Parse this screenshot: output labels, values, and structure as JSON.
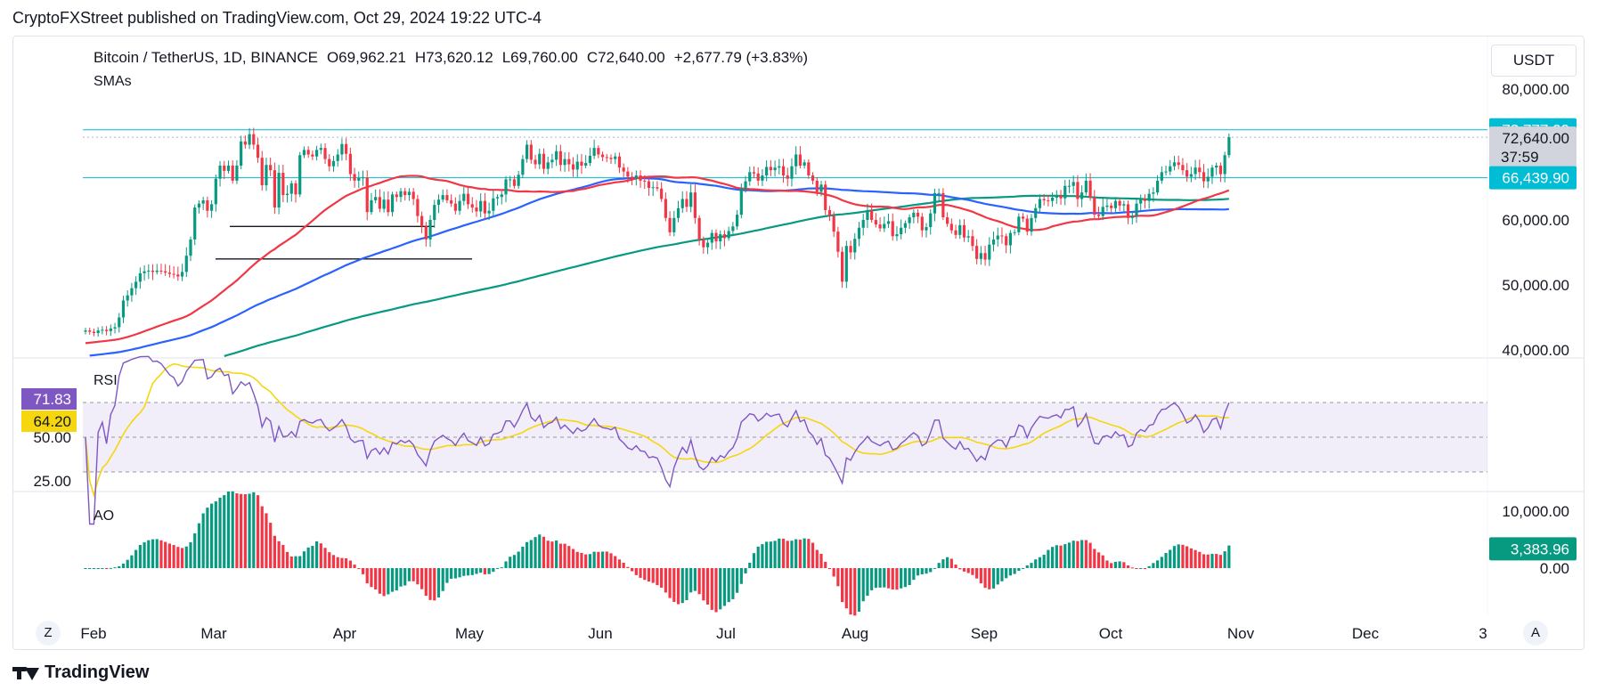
{
  "header": {
    "published": "CryptoFXStreet published on TradingView.com, Oct 29, 2024 19:22 UTC-4"
  },
  "footer": {
    "brand": "TradingView"
  },
  "currency": "USDT",
  "scale_buttons": {
    "left": "Z",
    "right": "A"
  },
  "legend": {
    "symbol": "Bitcoin / TetherUS, 1D, BINANCE",
    "open": "O69,962.21",
    "high": "H73,620.12",
    "low": "L69,760.00",
    "close": "C72,640.00",
    "change": "+2,677.79 (+3.83%)",
    "indicator": "SMAs"
  },
  "colors": {
    "bull": "#089981",
    "bear": "#f23645",
    "sma_red": "#f23645",
    "sma_blue": "#2962ff",
    "sma_green": "#089981",
    "rsi_line": "#7e57c2",
    "rsi_ma": "#f5d60f",
    "level_line": "#00bcd4"
  },
  "chart_data": [
    {
      "type": "candlestick",
      "title": "Bitcoin / TetherUS, 1D, BINANCE",
      "x_ticks": [
        "Feb",
        "Mar",
        "Apr",
        "May",
        "Jun",
        "Jul",
        "Aug",
        "Sep",
        "Oct",
        "Nov",
        "Dec",
        "3"
      ],
      "y_ticks": [
        "80,000.00",
        "60,000.00",
        "50,000.00",
        "40,000.00"
      ],
      "ylim": [
        40000,
        80000
      ],
      "price_labels": [
        {
          "value": 73777,
          "text": "73,777.00",
          "color": "#00bcd4"
        },
        {
          "value": 72640,
          "text": "72,640.00",
          "countdown": "37:59",
          "color": "#d1d4dc"
        },
        {
          "value": 66439.9,
          "text": "66,439.90",
          "color": "#00bcd4"
        }
      ],
      "horizontal_levels": [
        73777,
        66439.9
      ],
      "support_lines": [
        {
          "from": "Mar",
          "to": "Apr",
          "value": 59000
        },
        {
          "from": "Mar",
          "to": "May",
          "value": 54000
        }
      ],
      "closes": [
        43000,
        42800,
        42600,
        43000,
        43100,
        42900,
        43300,
        43500,
        45000,
        47600,
        48400,
        49500,
        50500,
        51800,
        52100,
        52200,
        52000,
        52200,
        52100,
        51900,
        51700,
        51600,
        51300,
        52000,
        54500,
        57000,
        61900,
        62500,
        63000,
        61400,
        62400,
        66300,
        68300,
        67500,
        68300,
        66000,
        68300,
        72000,
        71500,
        73100,
        71500,
        69500,
        65300,
        68400,
        67600,
        61900,
        67200,
        63800,
        64000,
        65600,
        63900,
        69900,
        70700,
        70000,
        69700,
        70700,
        71000,
        69300,
        68200,
        69000,
        70000,
        71600,
        70100,
        67000,
        66000,
        66400,
        66500,
        61200,
        63000,
        63500,
        61700,
        63100,
        61200,
        63900,
        63500,
        64400,
        63800,
        64300,
        63200,
        60600,
        59000,
        57000,
        60000,
        62300,
        63100,
        63800,
        63000,
        62500,
        61400,
        62900,
        64000,
        62400,
        61900,
        61300,
        62900,
        61000,
        61400,
        63300,
        63500,
        63900,
        66200,
        66200,
        65200,
        66900,
        69300,
        71500,
        69200,
        68500,
        70100,
        67800,
        68800,
        69200,
        70500,
        68400,
        69300,
        68500,
        67700,
        68900,
        68300,
        68700,
        69800,
        71000,
        70000,
        69600,
        69500,
        69300,
        69700,
        68000,
        67400,
        66600,
        66300,
        66800,
        66000,
        65900,
        64900,
        65000,
        64800,
        63200,
        60300,
        58100,
        60300,
        61800,
        63200,
        62000,
        64200,
        60300,
        57000,
        55800,
        56500,
        58000,
        56700,
        57800,
        57200,
        58300,
        59000,
        60800,
        64800,
        65900,
        67300,
        67100,
        66000,
        66800,
        68100,
        67600,
        68000,
        68200,
        66800,
        66300,
        68200,
        70000,
        68300,
        68800,
        66800,
        66000,
        64300,
        65400,
        61500,
        60600,
        58200,
        55100,
        50500,
        56000,
        55000,
        57100,
        58800,
        60000,
        61500,
        60000,
        59300,
        58700,
        59400,
        59800,
        57500,
        57800,
        58800,
        59500,
        60400,
        61100,
        60500,
        58400,
        58900,
        61000,
        64100,
        64100,
        60400,
        59400,
        58400,
        57700,
        59200,
        57300,
        57500,
        56000,
        54000,
        54900,
        53900,
        56200,
        57000,
        57600,
        57500,
        56100,
        58000,
        58100,
        60500,
        60200,
        58200,
        60300,
        61800,
        63200,
        63000,
        62900,
        63400,
        63700,
        63300,
        65200,
        65200,
        65800,
        63200,
        64200,
        66000,
        63400,
        60800,
        60600,
        62000,
        62200,
        61800,
        62900,
        62200,
        62400,
        60300,
        60600,
        62500,
        63200,
        62900,
        64000,
        64200,
        66000,
        67300,
        67400,
        68200,
        68800,
        68400,
        67600,
        66600,
        67000,
        68000,
        67300,
        65900,
        66600,
        68000,
        68300,
        67000,
        69900,
        72640
      ]
    },
    {
      "type": "line",
      "title": "RSI",
      "y_ticks": [
        "50.00",
        "25.00"
      ],
      "labels": [
        {
          "value": 71.83,
          "text": "71.83",
          "color": "#7e57c2"
        },
        {
          "value": 64.2,
          "text": "64.20",
          "color": "#f5d60f"
        }
      ],
      "bands": [
        70,
        50,
        30
      ],
      "ylim": [
        20,
        90
      ]
    },
    {
      "type": "bar",
      "title": "AO",
      "y_ticks": [
        "10,000.00",
        "0.00"
      ],
      "labels": [
        {
          "value": 3383.96,
          "text": "3,383.96",
          "color": "#089981"
        }
      ],
      "ylim": [
        -7000,
        13000
      ]
    }
  ]
}
